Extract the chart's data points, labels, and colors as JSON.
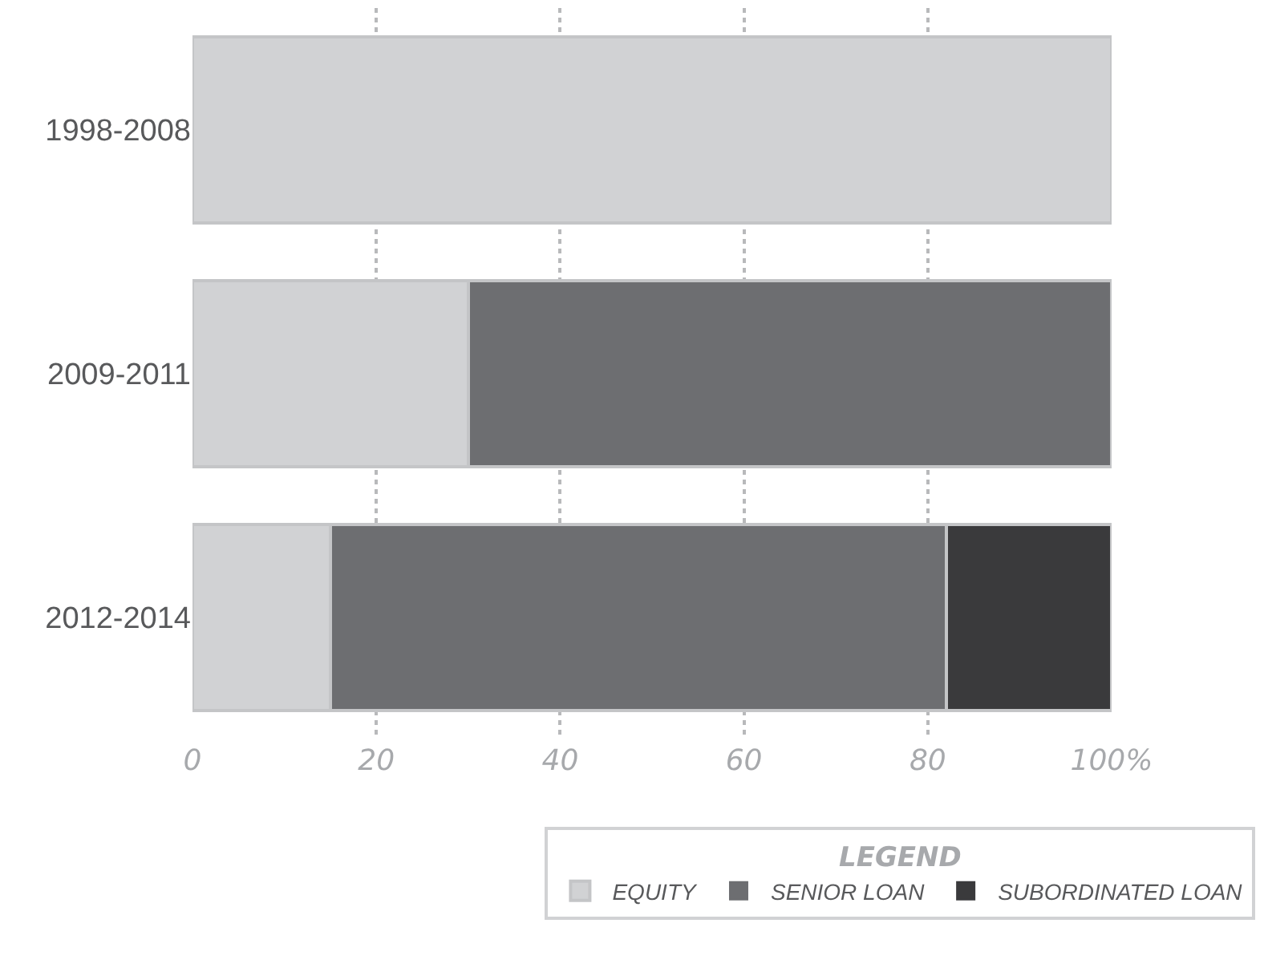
{
  "chart_data": {
    "type": "bar",
    "orientation": "horizontal",
    "stacked": true,
    "categories": [
      "1998-2008",
      "2009-2011",
      "2012-2014"
    ],
    "series": [
      {
        "name": "EQUITY",
        "color": "#d1d2d4",
        "values": [
          100,
          30,
          15
        ]
      },
      {
        "name": "SENIOR LOAN",
        "color": "#6d6e71",
        "values": [
          0,
          70,
          67
        ]
      },
      {
        "name": "SUBORDINATED LOAN",
        "color": "#3a3a3c",
        "values": [
          0,
          0,
          18
        ]
      }
    ],
    "xlim": [
      0,
      100
    ],
    "xticks": [
      0,
      20,
      40,
      60,
      80,
      {
        "value": 100,
        "label": "100%"
      }
    ],
    "grid": "x",
    "legend": "bottom",
    "legend_title": "LEGEND"
  }
}
